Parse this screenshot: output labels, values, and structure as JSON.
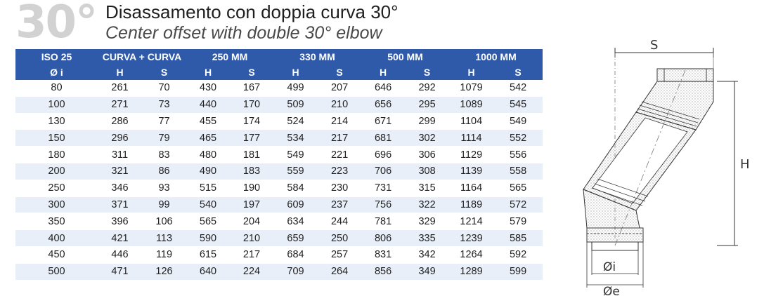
{
  "header": {
    "angle": "30°",
    "title_it": "Disassamento con doppia curva 30°",
    "title_en": "Center offset with double 30° elbow"
  },
  "table": {
    "group_headers": [
      "ISO 25",
      "CURVA + CURVA",
      "250 MM",
      "330 MM",
      "500 MM",
      "1000 MM"
    ],
    "sub_headers": [
      "Ø i",
      "H",
      "S",
      "H",
      "S",
      "H",
      "S",
      "H",
      "S",
      "H",
      "S"
    ],
    "rows": [
      [
        "80",
        "261",
        "70",
        "430",
        "167",
        "499",
        "207",
        "646",
        "292",
        "1079",
        "542"
      ],
      [
        "100",
        "271",
        "73",
        "440",
        "170",
        "509",
        "210",
        "656",
        "295",
        "1089",
        "545"
      ],
      [
        "130",
        "286",
        "77",
        "455",
        "174",
        "524",
        "214",
        "671",
        "299",
        "1104",
        "549"
      ],
      [
        "150",
        "296",
        "79",
        "465",
        "177",
        "534",
        "217",
        "681",
        "302",
        "1114",
        "552"
      ],
      [
        "180",
        "311",
        "83",
        "480",
        "181",
        "549",
        "221",
        "696",
        "306",
        "1129",
        "556"
      ],
      [
        "200",
        "321",
        "86",
        "490",
        "183",
        "559",
        "223",
        "706",
        "308",
        "1139",
        "558"
      ],
      [
        "250",
        "346",
        "93",
        "515",
        "190",
        "584",
        "230",
        "731",
        "315",
        "1164",
        "565"
      ],
      [
        "300",
        "371",
        "99",
        "540",
        "197",
        "609",
        "237",
        "756",
        "322",
        "1189",
        "572"
      ],
      [
        "350",
        "396",
        "106",
        "565",
        "204",
        "634",
        "244",
        "781",
        "329",
        "1214",
        "579"
      ],
      [
        "400",
        "421",
        "113",
        "590",
        "210",
        "659",
        "250",
        "806",
        "335",
        "1239",
        "585"
      ],
      [
        "450",
        "446",
        "119",
        "615",
        "217",
        "684",
        "257",
        "831",
        "342",
        "1264",
        "592"
      ],
      [
        "500",
        "471",
        "126",
        "640",
        "224",
        "709",
        "264",
        "856",
        "349",
        "1289",
        "599"
      ]
    ]
  },
  "diagram": {
    "label_s": "S",
    "label_h": "H",
    "label_di": "Øi",
    "label_de": "Øe"
  },
  "colors": {
    "header_blue": "#2f5aa9",
    "stripe": "#e9eff9",
    "angle_gray": "#d2d2d2"
  }
}
